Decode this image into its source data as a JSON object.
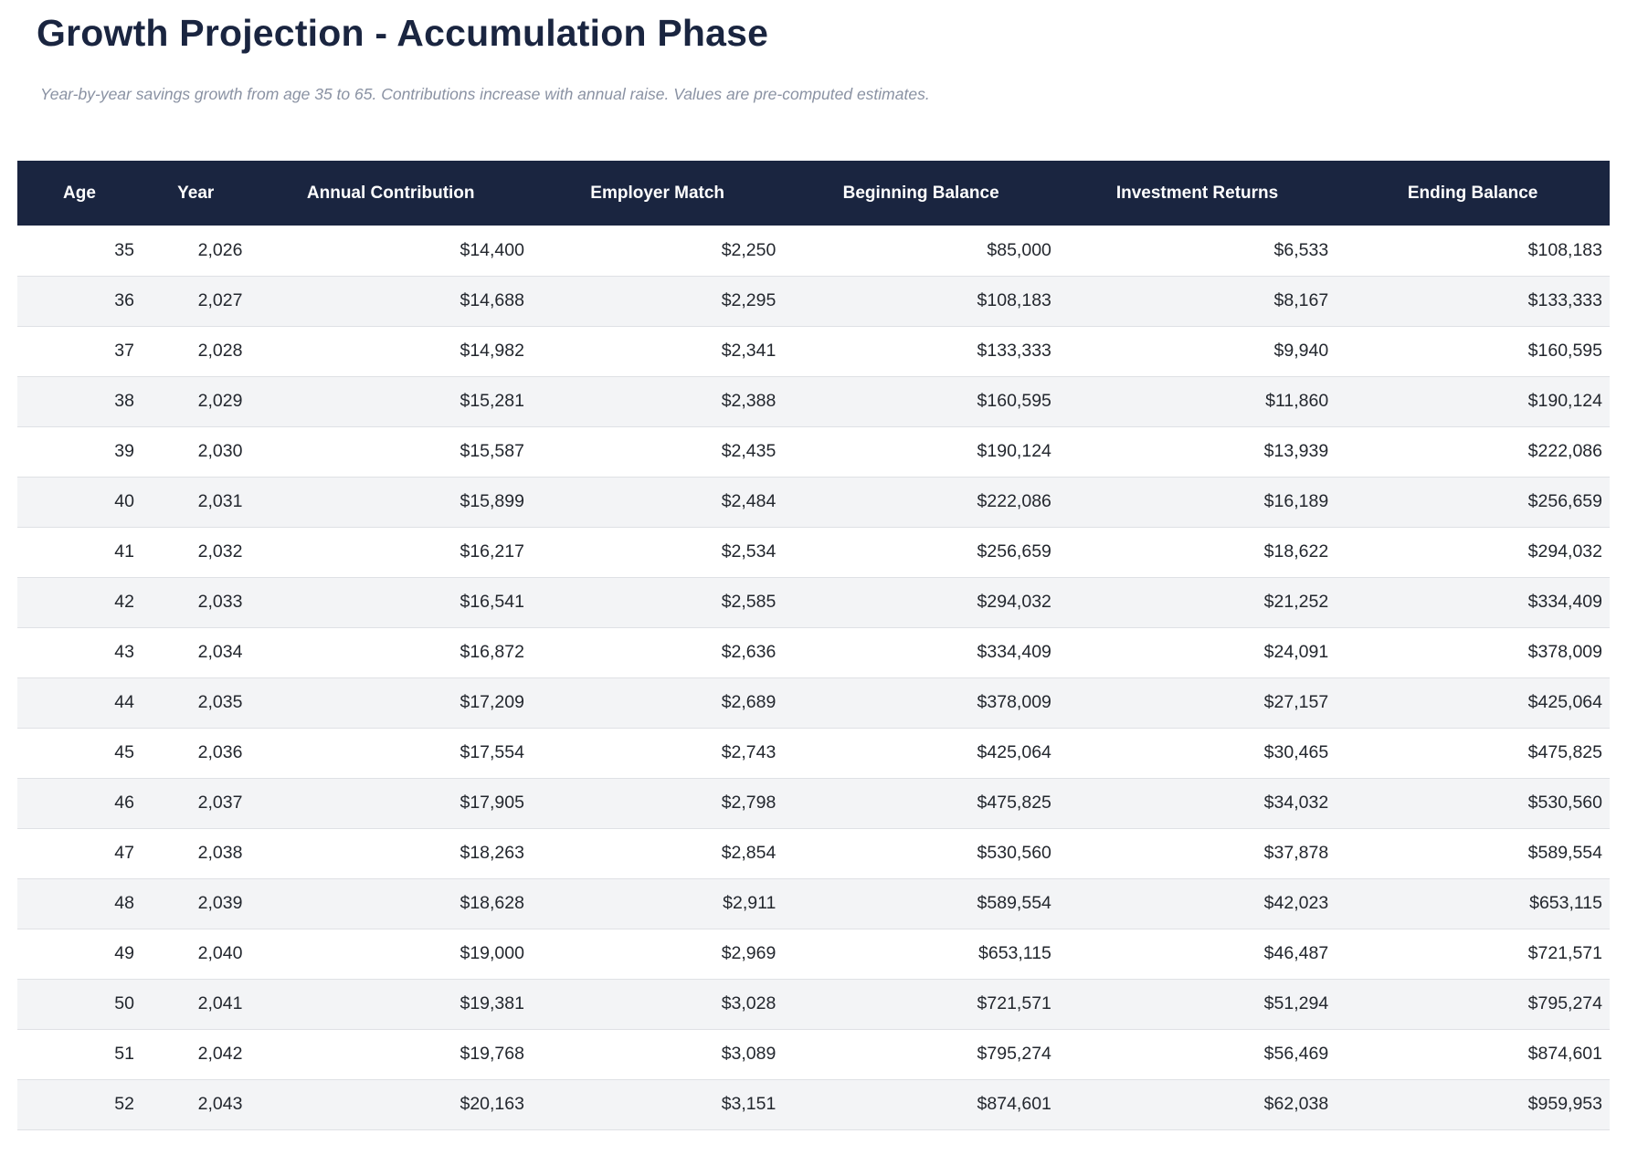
{
  "page": {
    "title": "Growth Projection - Accumulation Phase",
    "subtitle": "Year-by-year savings growth from age 35 to 65. Contributions increase with annual raise. Values are pre-computed estimates."
  },
  "chart_data": {
    "type": "table",
    "title": "Growth Projection - Accumulation Phase",
    "columns": [
      "Age",
      "Year",
      "Annual Contribution",
      "Employer Match",
      "Beginning Balance",
      "Investment Returns",
      "Ending Balance"
    ],
    "column_keys": [
      "age",
      "year",
      "annual_contribution",
      "employer_match",
      "beginning_balance",
      "investment_returns",
      "ending_balance"
    ],
    "rows": [
      [
        "35",
        "2,026",
        "$14,400",
        "$2,250",
        "$85,000",
        "$6,533",
        "$108,183"
      ],
      [
        "36",
        "2,027",
        "$14,688",
        "$2,295",
        "$108,183",
        "$8,167",
        "$133,333"
      ],
      [
        "37",
        "2,028",
        "$14,982",
        "$2,341",
        "$133,333",
        "$9,940",
        "$160,595"
      ],
      [
        "38",
        "2,029",
        "$15,281",
        "$2,388",
        "$160,595",
        "$11,860",
        "$190,124"
      ],
      [
        "39",
        "2,030",
        "$15,587",
        "$2,435",
        "$190,124",
        "$13,939",
        "$222,086"
      ],
      [
        "40",
        "2,031",
        "$15,899",
        "$2,484",
        "$222,086",
        "$16,189",
        "$256,659"
      ],
      [
        "41",
        "2,032",
        "$16,217",
        "$2,534",
        "$256,659",
        "$18,622",
        "$294,032"
      ],
      [
        "42",
        "2,033",
        "$16,541",
        "$2,585",
        "$294,032",
        "$21,252",
        "$334,409"
      ],
      [
        "43",
        "2,034",
        "$16,872",
        "$2,636",
        "$334,409",
        "$24,091",
        "$378,009"
      ],
      [
        "44",
        "2,035",
        "$17,209",
        "$2,689",
        "$378,009",
        "$27,157",
        "$425,064"
      ],
      [
        "45",
        "2,036",
        "$17,554",
        "$2,743",
        "$425,064",
        "$30,465",
        "$475,825"
      ],
      [
        "46",
        "2,037",
        "$17,905",
        "$2,798",
        "$475,825",
        "$34,032",
        "$530,560"
      ],
      [
        "47",
        "2,038",
        "$18,263",
        "$2,854",
        "$530,560",
        "$37,878",
        "$589,554"
      ],
      [
        "48",
        "2,039",
        "$18,628",
        "$2,911",
        "$589,554",
        "$42,023",
        "$653,115"
      ],
      [
        "49",
        "2,040",
        "$19,000",
        "$2,969",
        "$653,115",
        "$46,487",
        "$721,571"
      ],
      [
        "50",
        "2,041",
        "$19,381",
        "$3,028",
        "$721,571",
        "$51,294",
        "$795,274"
      ],
      [
        "51",
        "2,042",
        "$19,768",
        "$3,089",
        "$795,274",
        "$56,469",
        "$874,601"
      ],
      [
        "52",
        "2,043",
        "$20,163",
        "$3,151",
        "$874,601",
        "$62,038",
        "$959,953"
      ]
    ],
    "column_widths_pct": [
      7.8,
      6.8,
      17.7,
      15.8,
      17.3,
      17.4,
      17.2
    ],
    "layout": {
      "header_align": "center",
      "cell_align": "right",
      "striped": true,
      "grid": "horizontal-only"
    }
  },
  "colors": {
    "header_background": "#1a2540",
    "title_text": "#1a2540",
    "subtitle_text": "#8a92a3",
    "header_text": "#ffffff",
    "cell_text": "#23272e",
    "stripe_background": "#f3f4f6",
    "row_border": "#dfe1e5",
    "page_background": "#ffffff"
  }
}
